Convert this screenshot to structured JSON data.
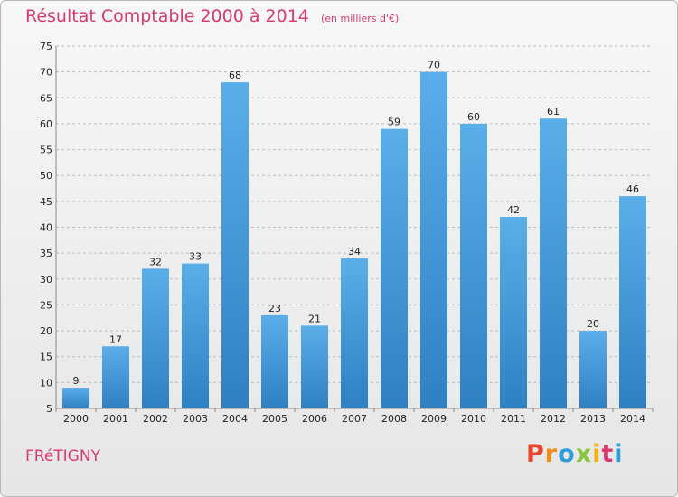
{
  "header": {
    "title": "Résultat Comptable 2000 à 2014",
    "subtitle": "(en milliers d'€)"
  },
  "footer": {
    "location": "FRéTIGNY",
    "brand": "Proxiti"
  },
  "colors": {
    "title": "#d83a6e",
    "bar_top": "#5aaee9",
    "bar_bottom": "#2f80c2",
    "grid": "#bdbdbd",
    "brand_letters": [
      "#e8442e",
      "#f28c1a",
      "#2f9ed8",
      "#8bc53f",
      "#f2b01a",
      "#d83a6e",
      "#2f9ed8"
    ]
  },
  "chart_data": {
    "type": "bar",
    "title": "Résultat Comptable 2000 à 2014",
    "subtitle": "(en milliers d'€)",
    "xlabel": "",
    "ylabel": "",
    "categories": [
      "2000",
      "2001",
      "2002",
      "2003",
      "2004",
      "2005",
      "2006",
      "2007",
      "2008",
      "2009",
      "2010",
      "2011",
      "2012",
      "2013",
      "2014"
    ],
    "values": [
      9,
      17,
      32,
      33,
      68,
      23,
      21,
      34,
      59,
      70,
      60,
      42,
      61,
      20,
      46
    ],
    "ylim": [
      5,
      75
    ],
    "yticks": [
      5,
      10,
      15,
      20,
      25,
      30,
      35,
      40,
      45,
      50,
      55,
      60,
      65,
      70,
      75
    ],
    "grid": true,
    "data_labels": true
  }
}
